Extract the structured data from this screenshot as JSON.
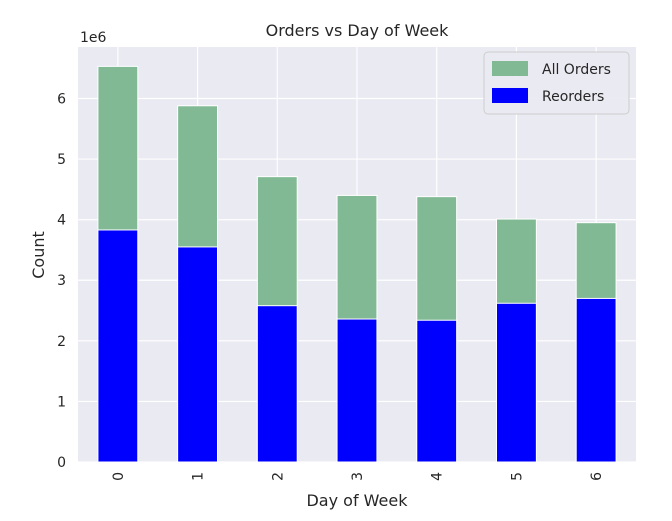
{
  "chart_data": {
    "type": "bar",
    "stacked": false,
    "title": "Orders vs Day of Week",
    "xlabel": "Day of Week",
    "ylabel": "Count",
    "offset_label": "1e6",
    "categories": [
      "0",
      "1",
      "2",
      "3",
      "4",
      "5",
      "6"
    ],
    "ylim": [
      0,
      6.85
    ],
    "yticks": [
      0,
      1,
      2,
      3,
      4,
      5,
      6
    ],
    "ytick_labels": [
      "0",
      "1",
      "2",
      "3",
      "4",
      "5",
      "6"
    ],
    "grid": true,
    "legend_position": "top-right",
    "series": [
      {
        "name": "All Orders",
        "color": "#80b993",
        "values": [
          6.53,
          5.88,
          4.71,
          4.4,
          4.38,
          4.01,
          3.95
        ]
      },
      {
        "name": "Reorders",
        "color": "#0000ff",
        "values": [
          3.83,
          3.55,
          2.58,
          2.36,
          2.34,
          2.62,
          2.7
        ]
      }
    ],
    "background_color": "#eaeaf2",
    "grid_color": "#ffffff"
  }
}
